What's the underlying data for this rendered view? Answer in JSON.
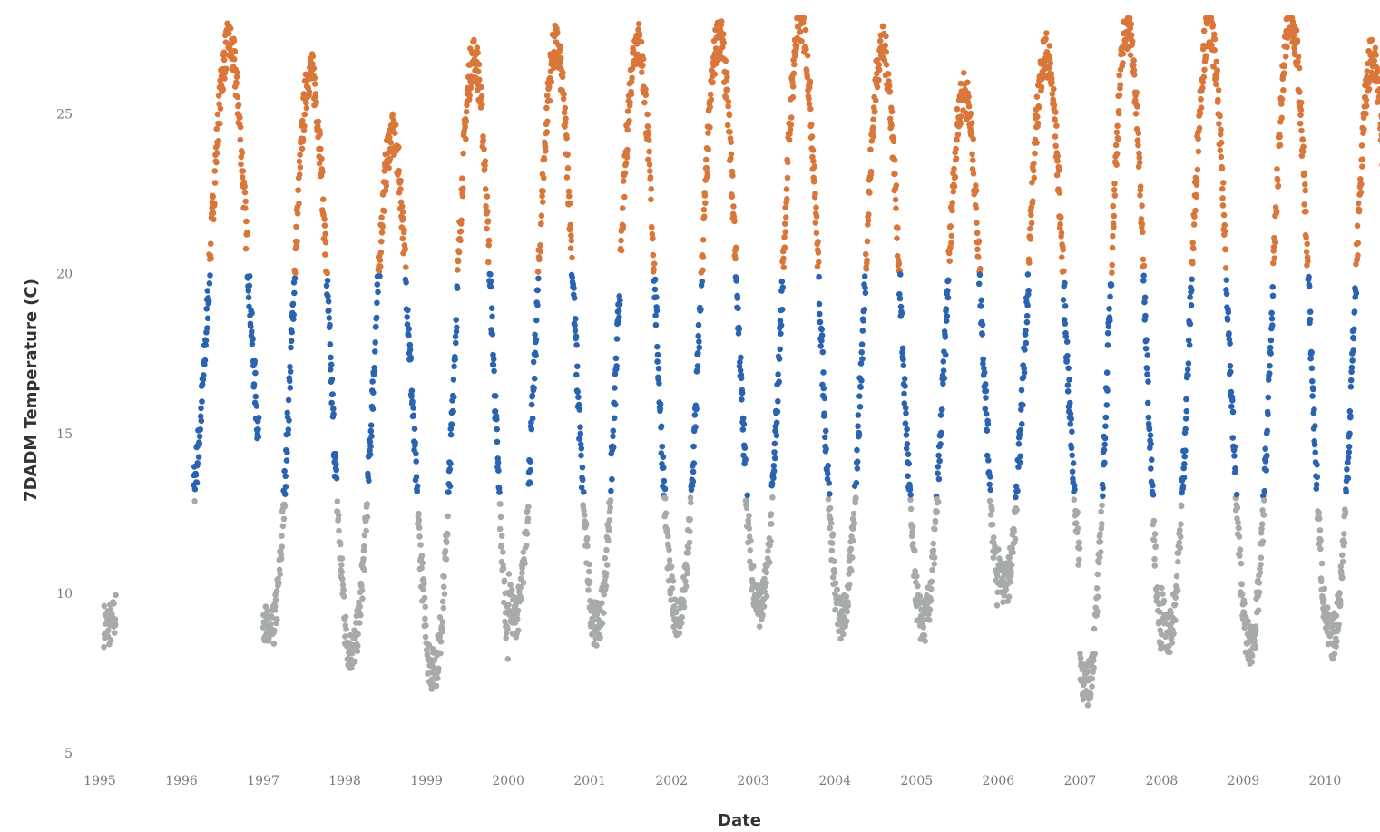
{
  "chart_data": {
    "type": "scatter",
    "title": "",
    "xlabel": "Date",
    "ylabel": "7DADM Temperature (C)",
    "xlim": [
      1995,
      2010.55
    ],
    "ylim": [
      5,
      28
    ],
    "x_ticks": [
      "1995",
      "1996",
      "1997",
      "1998",
      "1999",
      "2000",
      "2001",
      "2002",
      "2003",
      "2004",
      "2005",
      "2006",
      "2007",
      "2008",
      "2009",
      "2010"
    ],
    "y_ticks": [
      "5",
      "10",
      "15",
      "20",
      "25"
    ],
    "grid": false,
    "legend": "none",
    "color_rule": {
      "description": "points colored by temperature band",
      "low_color": "#a6aaa9",
      "mid_color": "#2a63b0",
      "high_color": "#d9773a",
      "mid_range": [
        13,
        20
      ],
      "high_above": 20
    },
    "annual_cycle": [
      {
        "year": 1995,
        "min": 9.0,
        "max": 12.2,
        "start": 1995.05,
        "end": 1995.2
      },
      {
        "year": 1996,
        "min": 12.8,
        "max": 27.2,
        "start": 1996.15,
        "end": 1996.95
      },
      {
        "year": 1997,
        "min": 8.7,
        "max": 26.3
      },
      {
        "year": 1998,
        "min": 8.2,
        "max": 24.3
      },
      {
        "year": 1999,
        "min": 7.6,
        "max": 26.8
      },
      {
        "year": 2000,
        "min": 9.3,
        "max": 27.1
      },
      {
        "year": 2001,
        "min": 9.0,
        "max": 27.3
      },
      {
        "year": 2002,
        "min": 9.3,
        "max": 27.4
      },
      {
        "year": 2003,
        "min": 9.6,
        "max": 27.9
      },
      {
        "year": 2004,
        "min": 9.2,
        "max": 27.1
      },
      {
        "year": 2005,
        "min": 9.1,
        "max": 25.7
      },
      {
        "year": 2006,
        "min": 10.3,
        "max": 26.9
      },
      {
        "year": 2007,
        "min": 7.1,
        "max": 27.7
      },
      {
        "year": 2008,
        "min": 8.8,
        "max": 27.7
      },
      {
        "year": 2009,
        "min": 8.4,
        "max": 28.0
      },
      {
        "year": 2010,
        "min": 8.6,
        "max": 26.8
      }
    ]
  }
}
